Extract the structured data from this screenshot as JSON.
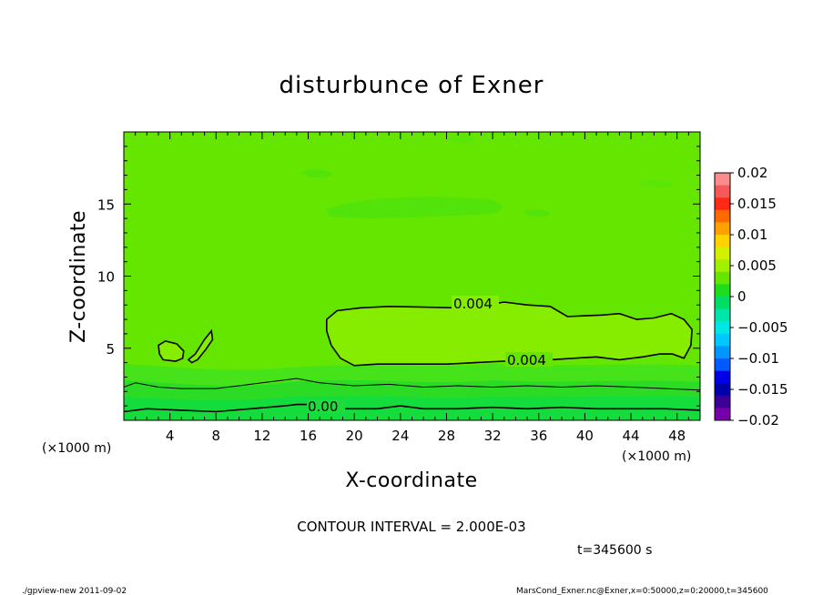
{
  "chart_data": {
    "type": "heatmap",
    "title": "disturbunce of Exner",
    "xlabel": "X-coordinate",
    "ylabel": "Z-coordinate",
    "x_unit_label": "(×1000 m)",
    "y_unit_label": "(×1000 m)",
    "xlim": [
      0,
      50
    ],
    "ylim": [
      0,
      20
    ],
    "x_ticks": [
      4,
      8,
      12,
      16,
      20,
      24,
      28,
      32,
      36,
      40,
      44,
      48
    ],
    "y_ticks": [
      5,
      10,
      15
    ],
    "colorbar": {
      "labels": [
        "0.02",
        "0.015",
        "0.01",
        "0.005",
        "0",
        "−0.005",
        "−0.01",
        "−0.015",
        "−0.02"
      ],
      "levels": [
        0.02,
        0.015,
        0.01,
        0.005,
        0,
        -0.005,
        -0.01,
        -0.015,
        -0.02
      ],
      "colors": [
        "#fa8c8c",
        "#f55a5a",
        "#ff2a14",
        "#ff6a00",
        "#ffa000",
        "#ffd200",
        "#d2f000",
        "#a0f000",
        "#64e600",
        "#1edc1e",
        "#00dc64",
        "#00e6aa",
        "#00e6e6",
        "#00c8ff",
        "#0096ff",
        "#005aff",
        "#0000e6",
        "#0000aa",
        "#3c0096",
        "#7800aa"
      ]
    },
    "contour_labels": [
      "0.004",
      "0.004",
      "0.00"
    ],
    "contour_lines": [
      {
        "label": "0.004",
        "points": [
          [
            17.6,
            7.0
          ],
          [
            18.5,
            7.6
          ],
          [
            20.5,
            7.8
          ],
          [
            23,
            7.9
          ],
          [
            26,
            7.85
          ],
          [
            29,
            7.8
          ],
          [
            31.5,
            8.0
          ],
          [
            33,
            8.2
          ],
          [
            35,
            8.0
          ],
          [
            37,
            7.9
          ],
          [
            38.5,
            7.2
          ],
          [
            40,
            7.25
          ],
          [
            41.5,
            7.3
          ],
          [
            43,
            7.4
          ],
          [
            44.5,
            7.0
          ],
          [
            46,
            7.1
          ],
          [
            47.5,
            7.4
          ],
          [
            48.6,
            7.0
          ],
          [
            49.3,
            6.3
          ],
          [
            49.2,
            5.2
          ],
          [
            48.6,
            4.3
          ],
          [
            47.6,
            4.6
          ],
          [
            46.5,
            4.6
          ],
          [
            45,
            4.4
          ],
          [
            43,
            4.2
          ],
          [
            41,
            4.4
          ],
          [
            39,
            4.3
          ],
          [
            37,
            4.2
          ],
          [
            35.5,
            4.1
          ],
          [
            33,
            4.1
          ],
          [
            30.5,
            4.0
          ],
          [
            28,
            3.9
          ],
          [
            25,
            3.9
          ],
          [
            22,
            3.9
          ],
          [
            20,
            3.8
          ],
          [
            18.8,
            4.3
          ],
          [
            18.0,
            5.2
          ],
          [
            17.6,
            6.2
          ],
          [
            17.6,
            7.0
          ]
        ]
      },
      {
        "label": "",
        "points": [
          [
            3.0,
            5.2
          ],
          [
            3.6,
            5.5
          ],
          [
            4.6,
            5.3
          ],
          [
            5.2,
            4.8
          ],
          [
            5.1,
            4.3
          ],
          [
            4.5,
            4.1
          ],
          [
            3.4,
            4.2
          ],
          [
            3.1,
            4.6
          ],
          [
            3.0,
            5.2
          ]
        ]
      },
      {
        "label": "",
        "points": [
          [
            5.6,
            4.2
          ],
          [
            6.2,
            4.6
          ],
          [
            7.0,
            5.6
          ],
          [
            7.6,
            6.2
          ],
          [
            7.7,
            5.6
          ],
          [
            7.1,
            4.9
          ],
          [
            6.4,
            4.2
          ],
          [
            5.9,
            4.0
          ],
          [
            5.6,
            4.2
          ]
        ]
      },
      {
        "label": "",
        "points": [
          [
            0,
            2.3
          ],
          [
            1,
            2.6
          ],
          [
            3,
            2.3
          ],
          [
            5,
            2.2
          ],
          [
            8,
            2.2
          ],
          [
            10,
            2.4
          ],
          [
            12,
            2.6
          ],
          [
            14,
            2.8
          ],
          [
            15,
            2.9
          ],
          [
            17,
            2.6
          ],
          [
            20,
            2.4
          ],
          [
            23,
            2.5
          ],
          [
            26,
            2.3
          ],
          [
            29,
            2.4
          ],
          [
            32,
            2.3
          ],
          [
            35,
            2.4
          ],
          [
            38,
            2.3
          ],
          [
            41,
            2.4
          ],
          [
            44,
            2.3
          ],
          [
            47,
            2.2
          ],
          [
            50,
            2.1
          ]
        ]
      },
      {
        "label": "0.00",
        "points": [
          [
            0,
            0.6
          ],
          [
            2,
            0.8
          ],
          [
            5,
            0.7
          ],
          [
            8,
            0.6
          ],
          [
            11,
            0.8
          ],
          [
            14,
            1.0
          ],
          [
            15,
            1.1
          ],
          [
            16,
            1.1
          ],
          [
            17,
            0.8
          ],
          [
            19,
            0.8
          ],
          [
            22,
            0.8
          ],
          [
            24,
            1.0
          ],
          [
            26,
            0.8
          ],
          [
            29,
            0.8
          ],
          [
            32,
            0.9
          ],
          [
            35,
            0.8
          ],
          [
            38,
            0.9
          ],
          [
            41,
            0.8
          ],
          [
            44,
            0.8
          ],
          [
            47,
            0.8
          ],
          [
            50,
            0.7
          ]
        ]
      }
    ]
  },
  "footer": {
    "contour_interval": "CONTOUR INTERVAL = 2.000E-03",
    "time": "t=345600  s",
    "program": "./gpview-new   2011-09-02",
    "source": "MarsCond_Exner.nc@Exner,x=0:50000,z=0:20000,t=345600"
  }
}
